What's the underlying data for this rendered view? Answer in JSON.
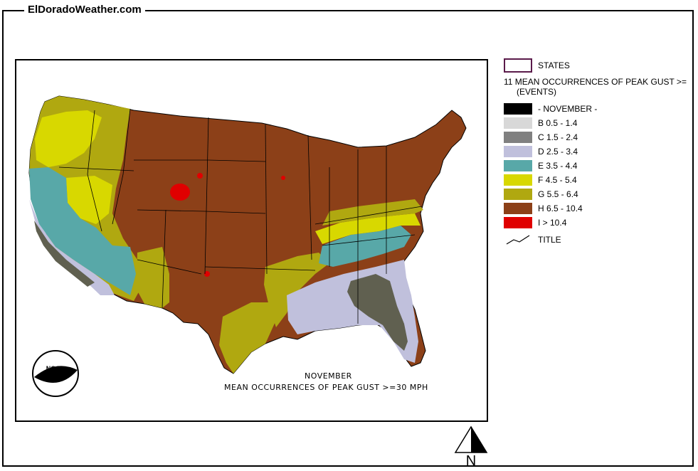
{
  "header": {
    "site_title": "ElDoradoWeather.com"
  },
  "legend": {
    "states_label": "STATES",
    "metric_title_line1": "11 MEAN OCCURRENCES OF PEAK GUST >=",
    "metric_title_line2": "(EVENTS)",
    "classes": [
      {
        "label": "- NOVEMBER -",
        "color": "#000000"
      },
      {
        "label": "B 0.5 - 1.4",
        "color": "#d8d8d8"
      },
      {
        "label": "C 1.5 - 2.4",
        "color": "#808080"
      },
      {
        "label": "D 2.5 - 3.4",
        "color": "#c0c0dc"
      },
      {
        "label": "E 3.5 - 4.4",
        "color": "#58a8a8"
      },
      {
        "label": "F 4.5 - 5.4",
        "color": "#d8d800"
      },
      {
        "label": "G 5.5 - 6.4",
        "color": "#b0a810"
      },
      {
        "label": "H 6.5 - 10.4",
        "color": "#8c4018"
      },
      {
        "label": "I > 10.4",
        "color": "#e00000"
      }
    ],
    "title_label": "TITLE"
  },
  "map": {
    "caption_line1": "NOVEMBER",
    "caption_line2": "MEAN OCCURRENCES OF PEAK GUST >=30 MPH",
    "logo_text": "NOAA",
    "north_label": "N"
  }
}
